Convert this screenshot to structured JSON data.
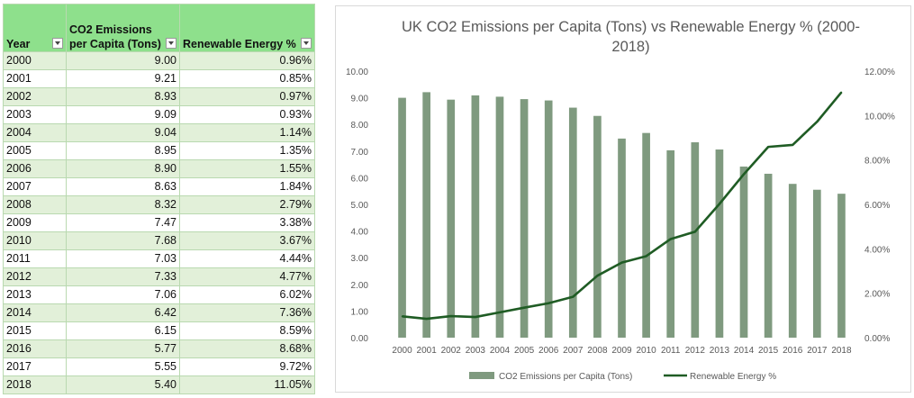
{
  "table": {
    "headers": [
      "Year",
      "CO2 Emissions per Capita (Tons)",
      "Renewable Energy %"
    ],
    "rows": [
      [
        "2000",
        "9.00",
        "0.96%"
      ],
      [
        "2001",
        "9.21",
        "0.85%"
      ],
      [
        "2002",
        "8.93",
        "0.97%"
      ],
      [
        "2003",
        "9.09",
        "0.93%"
      ],
      [
        "2004",
        "9.04",
        "1.14%"
      ],
      [
        "2005",
        "8.95",
        "1.35%"
      ],
      [
        "2006",
        "8.90",
        "1.55%"
      ],
      [
        "2007",
        "8.63",
        "1.84%"
      ],
      [
        "2008",
        "8.32",
        "2.79%"
      ],
      [
        "2009",
        "7.47",
        "3.38%"
      ],
      [
        "2010",
        "7.68",
        "3.67%"
      ],
      [
        "2011",
        "7.03",
        "4.44%"
      ],
      [
        "2012",
        "7.33",
        "4.77%"
      ],
      [
        "2013",
        "7.06",
        "6.02%"
      ],
      [
        "2014",
        "6.42",
        "7.36%"
      ],
      [
        "2015",
        "6.15",
        "8.59%"
      ],
      [
        "2016",
        "5.77",
        "8.68%"
      ],
      [
        "2017",
        "5.55",
        "9.72%"
      ],
      [
        "2018",
        "5.40",
        "11.05%"
      ]
    ]
  },
  "chart_data": {
    "type": "bar",
    "title": "UK CO2 Emissions per Capita (Tons) vs Renewable Energy % (2000-2018)",
    "categories": [
      "2000",
      "2001",
      "2002",
      "2003",
      "2004",
      "2005",
      "2006",
      "2007",
      "2008",
      "2009",
      "2010",
      "2011",
      "2012",
      "2013",
      "2014",
      "2015",
      "2016",
      "2017",
      "2018"
    ],
    "series": [
      {
        "name": "CO2 Emissions per Capita (Tons)",
        "type": "bar",
        "axis": "left",
        "color": "#7f9a7f",
        "values": [
          9.0,
          9.21,
          8.93,
          9.09,
          9.04,
          8.95,
          8.9,
          8.63,
          8.32,
          7.47,
          7.68,
          7.03,
          7.33,
          7.06,
          6.42,
          6.15,
          5.77,
          5.55,
          5.4
        ]
      },
      {
        "name": "Renewable Energy %",
        "type": "line",
        "axis": "right",
        "color": "#1f5c24",
        "values": [
          0.96,
          0.85,
          0.97,
          0.93,
          1.14,
          1.35,
          1.55,
          1.84,
          2.79,
          3.38,
          3.67,
          4.44,
          4.77,
          6.02,
          7.36,
          8.59,
          8.68,
          9.72,
          11.05
        ]
      }
    ],
    "ylim_left": [
      0,
      10
    ],
    "left_ticks": [
      "0.00",
      "1.00",
      "2.00",
      "3.00",
      "4.00",
      "5.00",
      "6.00",
      "7.00",
      "8.00",
      "9.00",
      "10.00"
    ],
    "ylim_right": [
      0,
      12
    ],
    "right_ticks": [
      "0.00%",
      "2.00%",
      "4.00%",
      "6.00%",
      "8.00%",
      "10.00%",
      "12.00%"
    ],
    "legend_position": "bottom",
    "grid": false
  }
}
